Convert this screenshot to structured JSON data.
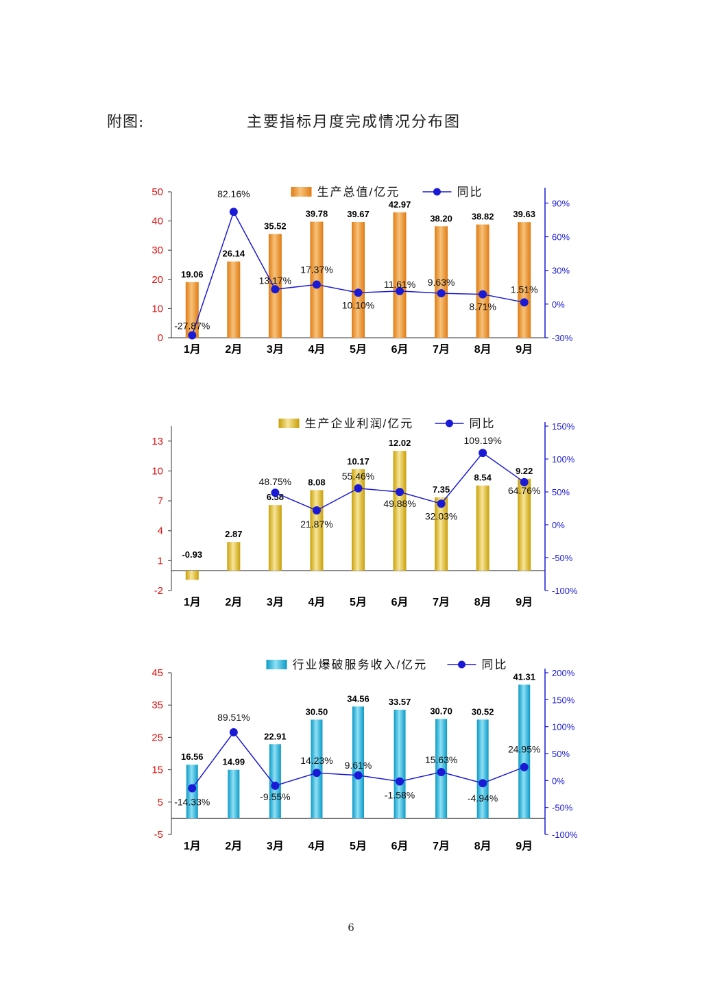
{
  "page": {
    "figure_label": "附图:",
    "figure_title": "主要指标月度完成情况分布图",
    "page_number": "6"
  },
  "chart_data": [
    {
      "type": "bar",
      "categories": [
        "1月",
        "2月",
        "3月",
        "4月",
        "5月",
        "6月",
        "7月",
        "8月",
        "9月"
      ],
      "series": [
        {
          "name": "生产总值/亿元",
          "type": "bar",
          "axis": "left",
          "values": [
            19.06,
            26.14,
            35.52,
            39.78,
            39.67,
            42.97,
            38.2,
            38.82,
            39.63
          ],
          "labels": [
            "19.06",
            "26.14",
            "35.52",
            "39.78",
            "39.67",
            "42.97",
            "38.20",
            "38.82",
            "39.63"
          ]
        },
        {
          "name": "同比",
          "type": "line",
          "axis": "right",
          "values": [
            -27.87,
            82.16,
            13.17,
            17.37,
            10.1,
            11.61,
            9.63,
            8.71,
            1.51
          ],
          "labels": [
            "-27.87%",
            "82.16%",
            "13.17%",
            "17.37%",
            "10.10%",
            "11.61%",
            "9.63%",
            "8.71%",
            "1.51%"
          ]
        }
      ],
      "left_axis": {
        "min": 0,
        "max": 50,
        "ticks": [
          "0",
          "10",
          "20",
          "30",
          "40",
          "50"
        ]
      },
      "right_axis": {
        "min": -30,
        "max": 100,
        "ticks": [
          "-30%",
          "0%",
          "30%",
          "60%",
          "90%"
        ]
      },
      "colors": {
        "bar": "#e07b14",
        "bar_light": "#f6c27a",
        "line": "#1a1ad6",
        "left_axis": "#e01010",
        "right_axis": "#1a1ad6"
      },
      "legend": "top"
    },
    {
      "type": "bar",
      "categories": [
        "1月",
        "2月",
        "3月",
        "4月",
        "5月",
        "6月",
        "7月",
        "8月",
        "9月"
      ],
      "series": [
        {
          "name": "生产企业利润/亿元",
          "type": "bar",
          "axis": "left",
          "values": [
            -0.93,
            2.87,
            6.58,
            8.08,
            10.17,
            12.02,
            7.35,
            8.54,
            9.22
          ],
          "labels": [
            "-0.93",
            "2.87",
            "6.58",
            "8.08",
            "10.17",
            "12.02",
            "7.35",
            "8.54",
            "9.22"
          ]
        },
        {
          "name": "同比",
          "type": "line",
          "axis": "right",
          "values": [
            null,
            null,
            48.75,
            21.87,
            55.46,
            49.88,
            32.03,
            109.19,
            64.76
          ],
          "labels": [
            null,
            null,
            "48.75%",
            "21.87%",
            "55.46%",
            "49.88%",
            "32.03%",
            "109.19%",
            "64.76%"
          ]
        }
      ],
      "left_axis": {
        "min": -2,
        "max": 14.5,
        "ticks": [
          "-2",
          "1",
          "4",
          "7",
          "10",
          "13"
        ]
      },
      "right_axis": {
        "min": -100,
        "max": 150,
        "ticks": [
          "-100%",
          "-50%",
          "0%",
          "50%",
          "100%",
          "150%"
        ]
      },
      "colors": {
        "bar": "#c9a006",
        "bar_light": "#f7e59a",
        "line": "#1a1ad6",
        "left_axis": "#e01010",
        "right_axis": "#1a1ad6"
      },
      "legend": "top"
    },
    {
      "type": "bar",
      "categories": [
        "1月",
        "2月",
        "3月",
        "4月",
        "5月",
        "6月",
        "7月",
        "8月",
        "9月"
      ],
      "series": [
        {
          "name": "行业爆破服务收入/亿元",
          "type": "bar",
          "axis": "left",
          "values": [
            16.56,
            14.99,
            22.91,
            30.5,
            34.56,
            33.57,
            30.7,
            30.52,
            41.31
          ],
          "labels": [
            "16.56",
            "14.99",
            "22.91",
            "30.50",
            "34.56",
            "33.57",
            "30.70",
            "30.52",
            "41.31"
          ]
        },
        {
          "name": "同比",
          "type": "line",
          "axis": "right",
          "values": [
            -14.33,
            89.51,
            -9.55,
            14.23,
            9.61,
            -1.58,
            15.63,
            -4.94,
            24.95
          ],
          "labels": [
            "-14.33%",
            "89.51%",
            "-9.55%",
            "14.23%",
            "9.61%",
            "-1.58%",
            "15.63%",
            "-4.94%",
            "24.95%"
          ]
        }
      ],
      "left_axis": {
        "min": -5,
        "max": 45,
        "ticks": [
          "-5",
          "5",
          "15",
          "25",
          "35",
          "45"
        ]
      },
      "right_axis": {
        "min": -100,
        "max": 200,
        "ticks": [
          "-100%",
          "-50%",
          "0%",
          "50%",
          "100%",
          "150%",
          "200%"
        ]
      },
      "colors": {
        "bar": "#0b9ac6",
        "bar_light": "#8fe0f5",
        "line": "#1a1ad6",
        "left_axis": "#e01010",
        "right_axis": "#1a1ad6"
      },
      "legend": "top"
    }
  ]
}
